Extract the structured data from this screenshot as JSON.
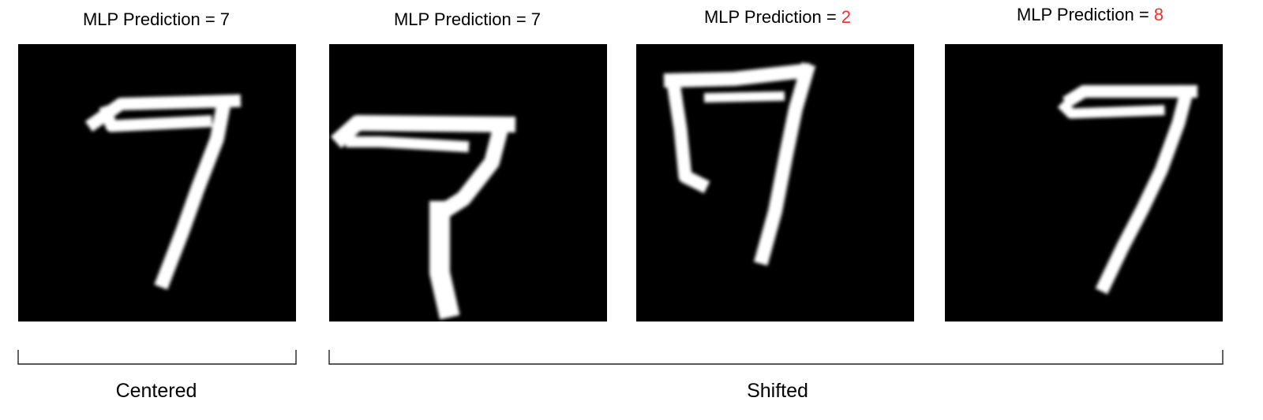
{
  "panels": [
    {
      "title_prefix": "MLP Prediction = ",
      "prediction": "7",
      "prediction_color": "#000000"
    },
    {
      "title_prefix": "MLP Prediction = ",
      "prediction": "7",
      "prediction_color": "#000000"
    },
    {
      "title_prefix": "MLP Prediction = ",
      "prediction": "2",
      "prediction_color": "#ff2a2a"
    },
    {
      "title_prefix": "MLP Prediction = ",
      "prediction": "8",
      "prediction_color": "#ff2a2a"
    }
  ],
  "groups": {
    "centered": "Centered",
    "shifted": "Shifted"
  },
  "colors": {
    "correct": "#000000",
    "wrong": "#ff2a2a"
  }
}
